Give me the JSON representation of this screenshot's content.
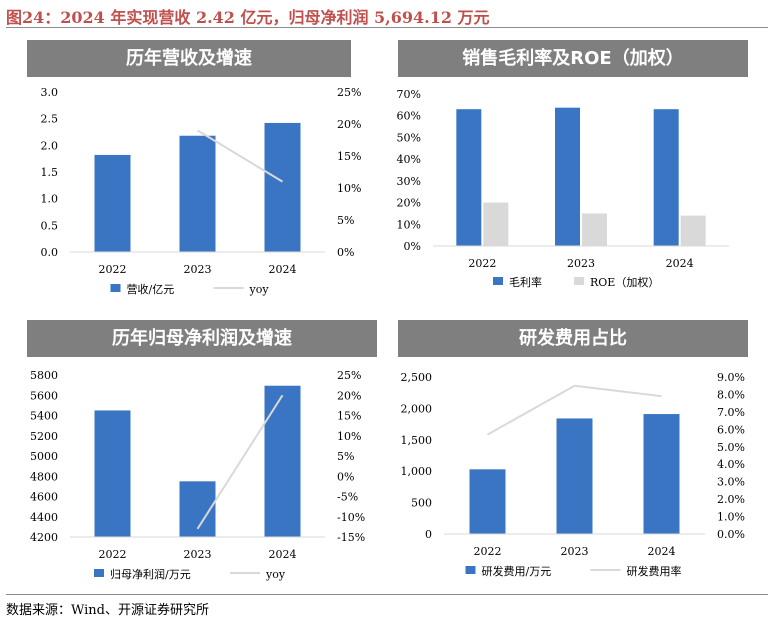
{
  "figure_title": "图24：2024 年实现营收 2.42 亿元，归母净利润 5,694.12 万元",
  "source": "数据来源：Wind、开源证券研究所",
  "colors": {
    "bar": "#3a75c4",
    "bar_secondary": "#d9d9d9",
    "line": "#d9d9d9",
    "title_bg": "#7f7f7f",
    "figure_title": "#c0504d"
  },
  "panels": [
    {
      "title": "历年营收及增速"
    },
    {
      "title": "销售毛利率及ROE（加权）"
    },
    {
      "title": "历年归母净利润及增速"
    },
    {
      "title": "研发费用占比"
    }
  ],
  "chart_data": [
    {
      "type": "bar",
      "categories": [
        "2022",
        "2023",
        "2024"
      ],
      "series": [
        {
          "name": "营收/亿元",
          "kind": "bar",
          "axis": "left",
          "values": [
            1.82,
            2.18,
            2.42
          ]
        },
        {
          "name": "yoy",
          "kind": "line",
          "axis": "right",
          "values": [
            null,
            0.19,
            0.11
          ]
        }
      ],
      "left_ticks": [
        "0.0",
        "0.5",
        "1.0",
        "1.5",
        "2.0",
        "2.5",
        "3.0"
      ],
      "right_ticks": [
        "0%",
        "5%",
        "10%",
        "15%",
        "20%",
        "25%"
      ],
      "ylim_left": [
        0,
        3.0
      ],
      "ylim_right": [
        0,
        0.25
      ],
      "legend": "bottom",
      "grid": false
    },
    {
      "type": "bar",
      "categories": [
        "2022",
        "2023",
        "2024"
      ],
      "series": [
        {
          "name": "毛利率",
          "kind": "bar",
          "axis": "left",
          "values": [
            0.63,
            0.637,
            0.63
          ]
        },
        {
          "name": "ROE（加权）",
          "kind": "bar",
          "axis": "left",
          "values": [
            0.2,
            0.15,
            0.14
          ]
        }
      ],
      "left_ticks": [
        "0%",
        "10%",
        "20%",
        "30%",
        "40%",
        "50%",
        "60%",
        "70%"
      ],
      "ylim_left": [
        0,
        0.7
      ],
      "legend": "bottom",
      "grid": false
    },
    {
      "type": "bar",
      "categories": [
        "2022",
        "2023",
        "2024"
      ],
      "series": [
        {
          "name": "归母净利润/万元",
          "kind": "bar",
          "axis": "left",
          "values": [
            5450,
            4750,
            5694.12
          ]
        },
        {
          "name": "yoy",
          "kind": "line",
          "axis": "right",
          "values": [
            null,
            -0.13,
            0.2
          ]
        }
      ],
      "left_ticks": [
        "4200",
        "4400",
        "4600",
        "4800",
        "5000",
        "5200",
        "5400",
        "5600",
        "5800"
      ],
      "right_ticks": [
        "-15%",
        "-10%",
        "-5%",
        "0%",
        "5%",
        "10%",
        "15%",
        "20%",
        "25%"
      ],
      "ylim_left": [
        4200,
        5800
      ],
      "ylim_right": [
        -0.15,
        0.25
      ],
      "legend": "bottom",
      "grid": false
    },
    {
      "type": "bar",
      "categories": [
        "2022",
        "2023",
        "2024"
      ],
      "series": [
        {
          "name": "研发费用/万元",
          "kind": "bar",
          "axis": "left",
          "values": [
            1030,
            1840,
            1910
          ]
        },
        {
          "name": "研发费用率",
          "kind": "line",
          "axis": "right",
          "values": [
            0.057,
            0.085,
            0.079
          ]
        }
      ],
      "left_ticks": [
        "0",
        "500",
        "1,000",
        "1,500",
        "2,000",
        "2,500"
      ],
      "right_ticks": [
        "0.0%",
        "1.0%",
        "2.0%",
        "3.0%",
        "4.0%",
        "5.0%",
        "6.0%",
        "7.0%",
        "8.0%",
        "9.0%"
      ],
      "ylim_left": [
        0,
        2500
      ],
      "ylim_right": [
        0,
        0.09
      ],
      "legend": "bottom",
      "grid": false
    }
  ]
}
